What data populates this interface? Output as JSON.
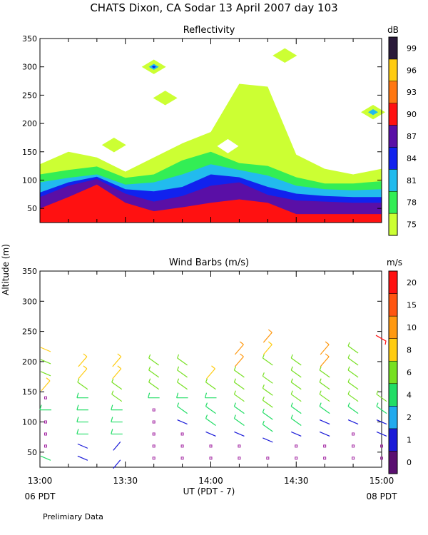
{
  "title": "CHATS Dixon, CA  Sodar  13 April 2007  day 103",
  "shared_ylabel": "Altitude (m)",
  "xlabel": "UT  (PDT - 7)",
  "x_ticks": [
    "13:00",
    "13:30",
    "14:00",
    "14:30",
    "15:00"
  ],
  "x_ticks_minutes": [
    0,
    30,
    60,
    90,
    120
  ],
  "pdt_left": "06 PDT",
  "pdt_right": "08 PDT",
  "footnote": "Prelimiary Data",
  "chart_data": [
    {
      "type": "heatmap",
      "title": "Reflectivity",
      "colorbar_unit": "dB",
      "colorbar_levels": [
        "75",
        "78",
        "81",
        "84",
        "87",
        "90",
        "93",
        "96",
        "99"
      ],
      "colorbar_colors": [
        "#ccff33",
        "#33ee55",
        "#22bbee",
        "#1122ee",
        "#5a0fa6",
        "#ff1111",
        "#ff7711",
        "#ffcc11",
        "#2a1a3a"
      ],
      "xlim_minutes": [
        0,
        120
      ],
      "ylim": [
        25,
        350
      ],
      "y_ticks": [
        50,
        100,
        150,
        200,
        250,
        300,
        350
      ],
      "time_minutes": [
        0,
        10,
        20,
        30,
        40,
        50,
        60,
        70,
        80,
        90,
        100,
        110,
        120
      ],
      "contour_layers": [
        {
          "level": 75,
          "top_m": [
            128,
            150,
            140,
            115,
            140,
            165,
            185,
            270,
            265,
            145,
            120,
            110,
            120
          ]
        },
        {
          "level": 78,
          "top_m": [
            110,
            118,
            124,
            104,
            110,
            135,
            150,
            130,
            125,
            105,
            94,
            94,
            98
          ]
        },
        {
          "level": 81,
          "top_m": [
            96,
            104,
            110,
            92,
            96,
            110,
            128,
            118,
            108,
            90,
            84,
            82,
            84
          ]
        },
        {
          "level": 84,
          "top_m": [
            78,
            96,
            106,
            84,
            80,
            88,
            110,
            105,
            88,
            76,
            72,
            70,
            70
          ]
        },
        {
          "level": 87,
          "top_m": [
            70,
            90,
            102,
            76,
            62,
            72,
            90,
            96,
            74,
            64,
            62,
            60,
            60
          ]
        },
        {
          "level": 90,
          "top_m": [
            50,
            70,
            92,
            60,
            45,
            52,
            60,
            66,
            60,
            40,
            40,
            40,
            40
          ]
        }
      ],
      "patches": [
        {
          "level": 75,
          "time_minutes": 40,
          "altitude_m": 300
        },
        {
          "level": 81,
          "time_minutes": 40,
          "altitude_m": 300
        },
        {
          "level": 84,
          "time_minutes": 40,
          "altitude_m": 300
        },
        {
          "level": 75,
          "time_minutes": 117,
          "altitude_m": 220
        },
        {
          "level": 81,
          "time_minutes": 117,
          "altitude_m": 220
        },
        {
          "level": 75,
          "time_minutes": 86,
          "altitude_m": 320
        },
        {
          "level": 75,
          "time_minutes": 26,
          "altitude_m": 162
        },
        {
          "level": 75,
          "time_minutes": 44,
          "altitude_m": 245
        }
      ]
    },
    {
      "type": "scatter",
      "title": "Wind Barbs (m/s)",
      "colorbar_unit": "m/s",
      "colorbar_levels": [
        "0",
        "1",
        "2",
        "4",
        "6",
        "8",
        "10",
        "15",
        "20"
      ],
      "colorbar_colors": [
        "#5a0f70",
        "#1a1ad8",
        "#22aaee",
        "#22dd66",
        "#77e022",
        "#ffcc11",
        "#ff9911",
        "#ff5511",
        "#ff1111"
      ],
      "xlim_minutes": [
        0,
        120
      ],
      "ylim": [
        25,
        350
      ],
      "y_ticks": [
        50,
        100,
        150,
        200,
        250,
        300,
        350
      ],
      "calm_marker_color": "#a020a0",
      "barb_colors": [
        "#5a0f70",
        "#1a1ad8",
        "#22aaee",
        "#22dd66",
        "#77e022",
        "#ffcc11",
        "#ff9911",
        "#ff5511",
        "#ff1111"
      ],
      "profiles": [
        {
          "time_minutes": 2,
          "barbs": [
            [
              40,
              3,
              2
            ],
            [
              60,
              0,
              0
            ],
            [
              80,
              0,
              0
            ],
            [
              100,
              0,
              0
            ],
            [
              120,
              3,
              4
            ],
            [
              140,
              0,
              0
            ],
            [
              160,
              5,
              5
            ],
            [
              180,
              4,
              2
            ],
            [
              200,
              4,
              2
            ],
            [
              220,
              5,
              2
            ]
          ]
        },
        {
          "time_minutes": 15,
          "barbs": [
            [
              40,
              1,
              2
            ],
            [
              60,
              1,
              2
            ],
            [
              80,
              3,
              4
            ],
            [
              100,
              3,
              4
            ],
            [
              120,
              3,
              4
            ],
            [
              140,
              3,
              4
            ],
            [
              160,
              4,
              3
            ],
            [
              180,
              5,
              5
            ],
            [
              200,
              5,
              5
            ]
          ]
        },
        {
          "time_minutes": 27,
          "barbs": [
            [
              30,
              1,
              -1
            ],
            [
              60,
              1,
              -1
            ],
            [
              80,
              3,
              4
            ],
            [
              100,
              3,
              4
            ],
            [
              120,
              3,
              4
            ],
            [
              140,
              4,
              3
            ],
            [
              160,
              4,
              3
            ],
            [
              180,
              5,
              5
            ],
            [
              200,
              5,
              5
            ]
          ]
        },
        {
          "time_minutes": 40,
          "barbs": [
            [
              40,
              0,
              0
            ],
            [
              60,
              0,
              0
            ],
            [
              80,
              0,
              0
            ],
            [
              100,
              0,
              0
            ],
            [
              120,
              0,
              0
            ],
            [
              140,
              3,
              4
            ],
            [
              160,
              4,
              3
            ],
            [
              180,
              4,
              3
            ],
            [
              200,
              4,
              3
            ]
          ]
        },
        {
          "time_minutes": 50,
          "barbs": [
            [
              40,
              0,
              0
            ],
            [
              60,
              0,
              0
            ],
            [
              80,
              0,
              0
            ],
            [
              100,
              1,
              2
            ],
            [
              120,
              3,
              3
            ],
            [
              140,
              3,
              4
            ],
            [
              160,
              4,
              3
            ],
            [
              180,
              4,
              3
            ],
            [
              200,
              4,
              3
            ]
          ]
        },
        {
          "time_minutes": 60,
          "barbs": [
            [
              40,
              0,
              0
            ],
            [
              60,
              0,
              0
            ],
            [
              80,
              1,
              2
            ],
            [
              100,
              3,
              3
            ],
            [
              120,
              3,
              3
            ],
            [
              140,
              3,
              4
            ],
            [
              160,
              4,
              3
            ],
            [
              180,
              5,
              5
            ]
          ]
        },
        {
          "time_minutes": 70,
          "barbs": [
            [
              40,
              0,
              0
            ],
            [
              60,
              0,
              0
            ],
            [
              80,
              1,
              2
            ],
            [
              100,
              3,
              3
            ],
            [
              120,
              3,
              3
            ],
            [
              140,
              4,
              3
            ],
            [
              160,
              4,
              3
            ],
            [
              180,
              4,
              3
            ],
            [
              200,
              6,
              5
            ],
            [
              220,
              6,
              5
            ]
          ]
        },
        {
          "time_minutes": 80,
          "barbs": [
            [
              40,
              0,
              0
            ],
            [
              70,
              1,
              2
            ],
            [
              90,
              3,
              3
            ],
            [
              110,
              3,
              3
            ],
            [
              130,
              4,
              3
            ],
            [
              150,
              4,
              3
            ],
            [
              170,
              4,
              3
            ],
            [
              200,
              4,
              3
            ],
            [
              220,
              5,
              5
            ],
            [
              240,
              6,
              5
            ]
          ]
        },
        {
          "time_minutes": 90,
          "barbs": [
            [
              40,
              0,
              0
            ],
            [
              60,
              0,
              0
            ],
            [
              80,
              1,
              2
            ],
            [
              100,
              3,
              3
            ],
            [
              120,
              3,
              3
            ],
            [
              140,
              4,
              3
            ],
            [
              160,
              4,
              3
            ],
            [
              180,
              4,
              3
            ],
            [
              200,
              4,
              3
            ]
          ]
        },
        {
          "time_minutes": 100,
          "barbs": [
            [
              40,
              0,
              0
            ],
            [
              60,
              0,
              0
            ],
            [
              80,
              1,
              2
            ],
            [
              100,
              1,
              2
            ],
            [
              120,
              3,
              3
            ],
            [
              140,
              4,
              3
            ],
            [
              160,
              4,
              3
            ],
            [
              180,
              4,
              3
            ],
            [
              200,
              6,
              5
            ],
            [
              220,
              6,
              5
            ]
          ]
        },
        {
          "time_minutes": 110,
          "barbs": [
            [
              40,
              0,
              0
            ],
            [
              60,
              0,
              0
            ],
            [
              80,
              0,
              0
            ],
            [
              100,
              1,
              2
            ],
            [
              120,
              3,
              3
            ],
            [
              140,
              4,
              3
            ],
            [
              160,
              4,
              3
            ],
            [
              180,
              4,
              3
            ],
            [
              200,
              4,
              3
            ],
            [
              220,
              4,
              3
            ]
          ]
        },
        {
          "time_minutes": 120,
          "barbs": [
            [
              40,
              0,
              0
            ],
            [
              60,
              0,
              0
            ],
            [
              80,
              1,
              2
            ],
            [
              100,
              1,
              2
            ],
            [
              120,
              3,
              3
            ],
            [
              140,
              4,
              3
            ],
            [
              240,
              8,
              6
            ]
          ]
        }
      ]
    }
  ]
}
